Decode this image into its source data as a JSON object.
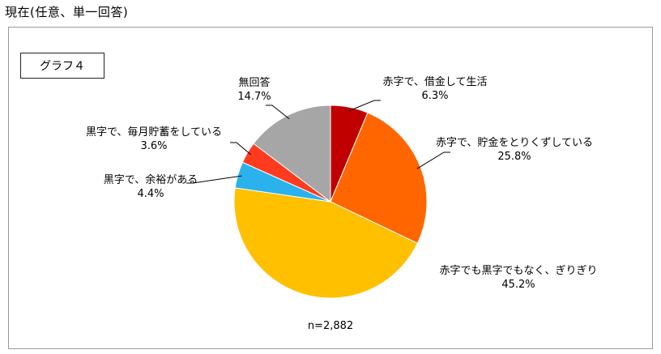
{
  "heading": "現在(任意、単一回答)",
  "graph_tag": "グラフ４",
  "chart_data": {
    "type": "pie",
    "title": "",
    "sample_note": "n=2,882",
    "start_angle_deg": 0,
    "direction": "clockwise",
    "slices": [
      {
        "label": "赤字で、借金して生活",
        "value": 6.3,
        "display": "6.3%",
        "color": "#c00000"
      },
      {
        "label": "赤字で、貯金をとりくずしている",
        "value": 25.8,
        "display": "25.8%",
        "color": "#ff6600"
      },
      {
        "label": "赤字でも黒字でもなく、ぎりぎり",
        "value": 45.2,
        "display": "45.2%",
        "color": "#ffc000"
      },
      {
        "label": "黒字で、余裕がある",
        "value": 4.4,
        "display": "4.4%",
        "color": "#2ab2ec"
      },
      {
        "label": "黒字で、毎月貯蓄をしている",
        "value": 3.6,
        "display": "3.6%",
        "color": "#ff3b1f"
      },
      {
        "label": "無回答",
        "value": 14.7,
        "display": "14.7%",
        "color": "#a6a6a6"
      }
    ]
  }
}
